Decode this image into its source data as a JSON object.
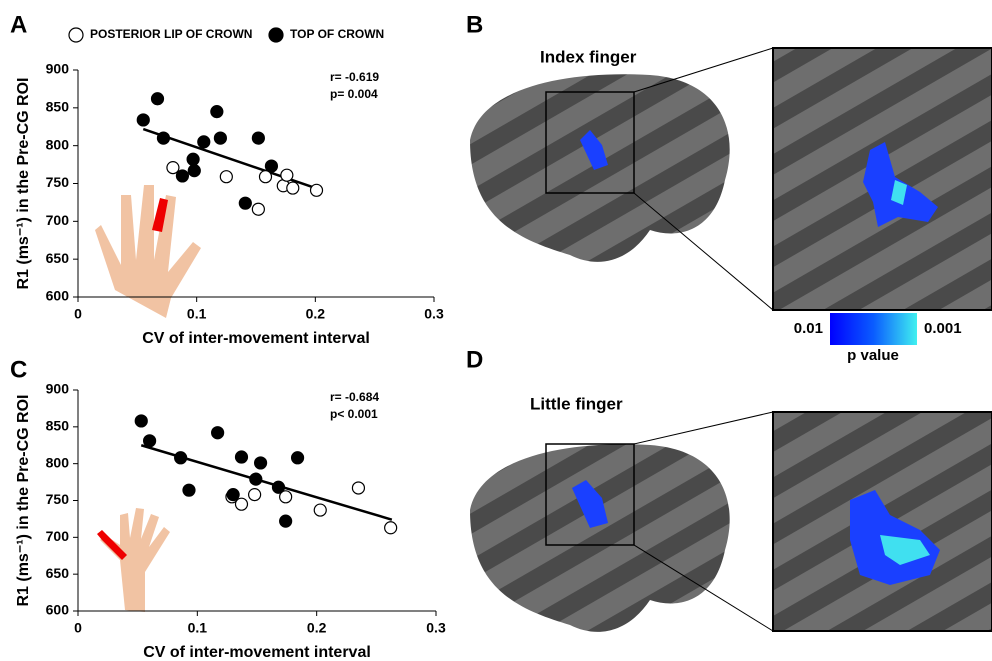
{
  "chart_data": [
    {
      "type": "scatter",
      "label": "A",
      "xlabel": "CV of inter-movement interval",
      "ylabel": "R1 (ms⁻¹) in the Pre-CG ROI",
      "xlim": [
        0,
        0.3
      ],
      "xticks": [
        0,
        0.1,
        0.2,
        0.3
      ],
      "ylim": [
        600,
        900
      ],
      "yticks": [
        600,
        650,
        700,
        750,
        800,
        850,
        900
      ],
      "annotations": [
        "r= -0.619",
        "p= 0.004"
      ],
      "legend": "top",
      "series": [
        {
          "name": "POSTERIOR LIP OF CROWN",
          "marker": "open",
          "color": "#000000",
          "x": [
            0.08,
            0.125,
            0.152,
            0.158,
            0.173,
            0.176,
            0.181,
            0.201
          ],
          "values": [
            771,
            759,
            716,
            759,
            747,
            761,
            744,
            741
          ]
        },
        {
          "name": "TOP OF CROWN",
          "marker": "filled",
          "color": "#000000",
          "x": [
            0.055,
            0.067,
            0.072,
            0.088,
            0.097,
            0.098,
            0.106,
            0.117,
            0.12,
            0.141,
            0.152,
            0.163
          ],
          "values": [
            834,
            862,
            810,
            760,
            782,
            767,
            805,
            845,
            810,
            724,
            810,
            773
          ]
        }
      ],
      "fit": {
        "x": [
          0.055,
          0.202
        ],
        "values": [
          822,
          743
        ]
      }
    },
    {
      "type": "scatter",
      "label": "C",
      "xlabel": "CV of inter-movement interval",
      "ylabel": "R1 (ms⁻¹) in the Pre-CG ROI",
      "xlim": [
        0,
        0.3
      ],
      "xticks": [
        0,
        0.1,
        0.2,
        0.3
      ],
      "ylim": [
        600,
        900
      ],
      "yticks": [
        600,
        650,
        700,
        750,
        800,
        850,
        900
      ],
      "annotations": [
        "r= -0.684",
        "p< 0.001"
      ],
      "legend": false,
      "series": [
        {
          "marker": "open",
          "color": "#000000",
          "x": [
            0.129,
            0.137,
            0.148,
            0.174,
            0.203,
            0.235,
            0.262
          ],
          "values": [
            755,
            745,
            758,
            755,
            737,
            767,
            713
          ]
        },
        {
          "marker": "filled",
          "color": "#000000",
          "x": [
            0.053,
            0.06,
            0.086,
            0.093,
            0.117,
            0.13,
            0.137,
            0.149,
            0.153,
            0.168,
            0.174,
            0.184
          ],
          "values": [
            858,
            831,
            808,
            764,
            842,
            758,
            809,
            779,
            801,
            768,
            722,
            808
          ]
        }
      ],
      "fit": {
        "x": [
          0.053,
          0.263
        ],
        "values": [
          825,
          724
        ]
      }
    }
  ],
  "brain_panels": [
    {
      "label": "B",
      "title": "Index finger"
    },
    {
      "label": "D",
      "title": "Little finger"
    }
  ],
  "colorbar": {
    "low": "0.01",
    "high": "0.001",
    "title": "p value"
  }
}
